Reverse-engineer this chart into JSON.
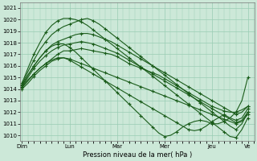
{
  "title": "",
  "xlabel": "Pression niveau de la mer( hPa )",
  "background_color": "#cce8d8",
  "grid_color": "#99ccb3",
  "line_color": "#1a5c1a",
  "ylim": [
    1009.5,
    1021.5
  ],
  "yticks": [
    1010,
    1011,
    1012,
    1013,
    1014,
    1015,
    1016,
    1017,
    1018,
    1019,
    1020,
    1021
  ],
  "day_labels": [
    "Dim",
    "Lun",
    "Mar",
    "Mer",
    "Jeu",
    "Ve"
  ],
  "series": [
    {
      "x": [
        0,
        6,
        12,
        18,
        24,
        30,
        36,
        42,
        48,
        54,
        60,
        66,
        72,
        78,
        84,
        90,
        96,
        102,
        108,
        114,
        120,
        126,
        132,
        138,
        144,
        150,
        156,
        162,
        168,
        174,
        180,
        186,
        192,
        198,
        204,
        210,
        216,
        222,
        228
      ],
      "y": [
        1014.2,
        1014.8,
        1015.3,
        1015.8,
        1016.2,
        1016.6,
        1017.0,
        1017.3,
        1017.3,
        1017.4,
        1017.5,
        1017.4,
        1017.3,
        1017.2,
        1017.1,
        1017.0,
        1016.8,
        1016.5,
        1016.2,
        1016.0,
        1015.8,
        1015.6,
        1015.4,
        1015.2,
        1014.9,
        1014.6,
        1014.3,
        1014.0,
        1013.7,
        1013.4,
        1013.1,
        1012.8,
        1012.5,
        1012.3,
        1012.1,
        1012.0,
        1012.0,
        1012.2,
        1012.5
      ]
    },
    {
      "x": [
        0,
        6,
        12,
        18,
        24,
        30,
        36,
        42,
        48,
        54,
        60,
        66,
        72,
        78,
        84,
        90,
        96,
        102,
        108,
        114,
        120,
        126,
        132,
        138,
        144,
        150,
        156,
        162,
        168,
        174,
        180,
        186,
        192,
        198,
        204,
        210,
        216,
        222,
        228
      ],
      "y": [
        1014.3,
        1015.2,
        1016.0,
        1016.7,
        1017.3,
        1017.8,
        1018.1,
        1018.3,
        1018.5,
        1018.7,
        1018.8,
        1018.8,
        1018.7,
        1018.5,
        1018.3,
        1018.1,
        1017.8,
        1017.5,
        1017.2,
        1016.9,
        1016.6,
        1016.3,
        1016.0,
        1015.7,
        1015.4,
        1015.1,
        1014.8,
        1014.5,
        1014.2,
        1013.9,
        1013.6,
        1013.3,
        1013.0,
        1012.7,
        1012.4,
        1012.1,
        1011.8,
        1012.0,
        1012.5
      ]
    },
    {
      "x": [
        0,
        6,
        12,
        18,
        24,
        30,
        36,
        42,
        48,
        54,
        60,
        66,
        72,
        78,
        84,
        90,
        96,
        102,
        108,
        114,
        120,
        126,
        132,
        138,
        144,
        150,
        156,
        162,
        168,
        174,
        180,
        186,
        192,
        198,
        204,
        210,
        216,
        222,
        228
      ],
      "y": [
        1014.4,
        1015.5,
        1016.5,
        1017.4,
        1018.1,
        1018.7,
        1019.1,
        1019.4,
        1019.6,
        1019.8,
        1020.0,
        1020.1,
        1019.9,
        1019.6,
        1019.2,
        1018.8,
        1018.4,
        1018.0,
        1017.6,
        1017.2,
        1016.8,
        1016.4,
        1016.0,
        1015.6,
        1015.2,
        1014.8,
        1014.4,
        1014.0,
        1013.6,
        1013.2,
        1012.8,
        1012.4,
        1012.0,
        1011.6,
        1011.2,
        1010.8,
        1010.5,
        1011.0,
        1012.0
      ]
    },
    {
      "x": [
        0,
        6,
        12,
        18,
        24,
        30,
        36,
        42,
        48,
        54,
        60,
        66,
        72,
        78,
        84,
        90,
        96,
        102,
        108,
        114,
        120,
        126,
        132,
        138,
        144,
        150,
        156,
        162,
        168,
        174,
        180,
        186,
        192,
        198,
        204,
        210,
        216,
        222,
        228
      ],
      "y": [
        1014.5,
        1015.8,
        1017.0,
        1018.0,
        1018.9,
        1019.5,
        1019.9,
        1020.1,
        1020.1,
        1020.0,
        1019.8,
        1019.5,
        1019.1,
        1018.7,
        1018.3,
        1017.9,
        1017.5,
        1017.1,
        1016.7,
        1016.3,
        1015.9,
        1015.5,
        1015.1,
        1014.7,
        1014.3,
        1013.9,
        1013.5,
        1013.1,
        1012.7,
        1012.3,
        1011.9,
        1011.5,
        1011.1,
        1010.7,
        1010.3,
        1009.9,
        1009.8,
        1010.5,
        1011.5
      ]
    },
    {
      "x": [
        0,
        6,
        12,
        18,
        24,
        30,
        36,
        42,
        48,
        54,
        60,
        66,
        72,
        78,
        84,
        90,
        96,
        102,
        108,
        114,
        120,
        126,
        132,
        138,
        144,
        150,
        156,
        162,
        168,
        174,
        180,
        186,
        192,
        198,
        204,
        210,
        216,
        222,
        228
      ],
      "y": [
        1014.2,
        1015.0,
        1015.8,
        1016.4,
        1016.9,
        1017.3,
        1017.6,
        1017.8,
        1017.9,
        1018.0,
        1018.1,
        1018.0,
        1017.9,
        1017.7,
        1017.5,
        1017.3,
        1017.1,
        1016.8,
        1016.5,
        1016.2,
        1015.9,
        1015.6,
        1015.3,
        1015.0,
        1014.7,
        1014.4,
        1014.1,
        1013.8,
        1013.5,
        1013.2,
        1012.9,
        1012.6,
        1012.3,
        1012.0,
        1011.7,
        1011.4,
        1011.1,
        1011.3,
        1012.0
      ]
    },
    {
      "x": [
        0,
        6,
        12,
        18,
        24,
        30,
        36,
        42,
        48,
        54,
        60,
        66,
        72,
        78,
        84,
        90,
        96,
        102,
        108,
        114,
        120,
        126,
        132,
        138,
        144,
        150,
        156,
        162,
        168,
        174,
        180,
        186,
        192,
        198,
        204,
        210,
        216,
        222,
        228
      ],
      "y": [
        1014.0,
        1014.5,
        1015.1,
        1015.6,
        1016.0,
        1016.4,
        1016.6,
        1016.7,
        1016.6,
        1016.4,
        1016.2,
        1016.0,
        1015.8,
        1015.6,
        1015.4,
        1015.2,
        1015.0,
        1014.8,
        1014.6,
        1014.4,
        1014.2,
        1014.0,
        1013.8,
        1013.6,
        1013.4,
        1013.2,
        1013.0,
        1012.8,
        1012.6,
        1012.4,
        1012.2,
        1012.0,
        1011.8,
        1011.6,
        1011.4,
        1011.2,
        1011.0,
        1011.2,
        1011.8
      ]
    },
    {
      "x": [
        0,
        6,
        12,
        18,
        24,
        30,
        36,
        42,
        48,
        54,
        60,
        66,
        72,
        78,
        84,
        90,
        96,
        102,
        108,
        114,
        120,
        126,
        132,
        138,
        144,
        150,
        156,
        162,
        168,
        174,
        180,
        186,
        192,
        198,
        204,
        210,
        216,
        222,
        228
      ],
      "y": [
        1014.1,
        1014.7,
        1015.3,
        1015.8,
        1016.2,
        1016.5,
        1016.7,
        1016.7,
        1016.5,
        1016.2,
        1015.9,
        1015.6,
        1015.3,
        1015.0,
        1014.7,
        1014.4,
        1014.1,
        1013.8,
        1013.5,
        1013.2,
        1012.9,
        1012.6,
        1012.3,
        1012.0,
        1011.7,
        1011.4,
        1011.1,
        1010.8,
        1010.5,
        1010.4,
        1010.5,
        1010.8,
        1011.2,
        1011.5,
        1011.8,
        1011.5,
        1011.3,
        1011.5,
        1012.3
      ]
    },
    {
      "x": [
        0,
        6,
        12,
        18,
        24,
        30,
        36,
        42,
        48,
        54,
        60,
        66,
        72,
        78,
        84,
        90,
        96,
        102,
        108,
        114,
        120,
        126,
        132,
        138,
        144,
        150,
        156,
        162,
        168,
        174,
        180,
        186,
        192,
        198,
        204,
        210,
        216,
        222,
        228
      ],
      "y": [
        1014.3,
        1015.2,
        1016.0,
        1016.7,
        1017.3,
        1017.7,
        1017.9,
        1017.9,
        1017.6,
        1017.2,
        1016.7,
        1016.2,
        1015.7,
        1015.2,
        1014.7,
        1014.2,
        1013.7,
        1013.2,
        1012.7,
        1012.2,
        1011.7,
        1011.2,
        1010.7,
        1010.2,
        1009.9,
        1010.0,
        1010.3,
        1010.7,
        1011.0,
        1011.2,
        1011.3,
        1011.2,
        1011.0,
        1011.0,
        1011.2,
        1011.5,
        1012.0,
        1013.0,
        1015.0
      ]
    }
  ]
}
